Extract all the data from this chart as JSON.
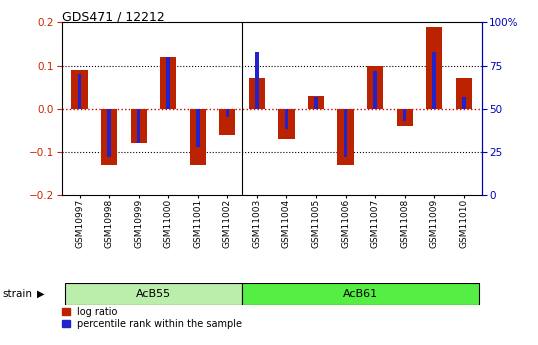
{
  "title": "GDS471 / 12212",
  "samples": [
    "GSM10997",
    "GSM10998",
    "GSM10999",
    "GSM11000",
    "GSM11001",
    "GSM11002",
    "GSM11003",
    "GSM11004",
    "GSM11005",
    "GSM11006",
    "GSM11007",
    "GSM11008",
    "GSM11009",
    "GSM11010"
  ],
  "log_ratio": [
    0.09,
    -0.13,
    -0.08,
    0.12,
    -0.13,
    -0.06,
    0.07,
    -0.07,
    0.03,
    -0.13,
    0.1,
    -0.04,
    0.19,
    0.07
  ],
  "percentile_rank": [
    70,
    22,
    30,
    80,
    28,
    45,
    83,
    38,
    57,
    22,
    72,
    43,
    83,
    57
  ],
  "left_ylim": [
    -0.2,
    0.2
  ],
  "right_ylim": [
    0,
    100
  ],
  "left_yticks": [
    -0.2,
    -0.1,
    0.0,
    0.1,
    0.2
  ],
  "right_yticks": [
    0,
    25,
    50,
    75,
    100
  ],
  "right_yticklabels": [
    "0",
    "25",
    "50",
    "75",
    "100%"
  ],
  "groups": [
    {
      "label": "AcB55",
      "start": 0,
      "end": 5,
      "color": "#bbeeaa"
    },
    {
      "label": "AcB61",
      "start": 6,
      "end": 13,
      "color": "#55ee44"
    }
  ],
  "bar_color_red": "#bb2200",
  "bar_color_blue": "#2222cc",
  "legend_labels": [
    "log ratio",
    "percentile rank within the sample"
  ],
  "strain_label": "strain",
  "hline_color": "#cc0000",
  "plot_bg": "#ffffff",
  "left_tick_color": "#cc2200",
  "right_tick_color": "#0000bb",
  "bar_width": 0.55,
  "blue_bar_width": 0.12
}
